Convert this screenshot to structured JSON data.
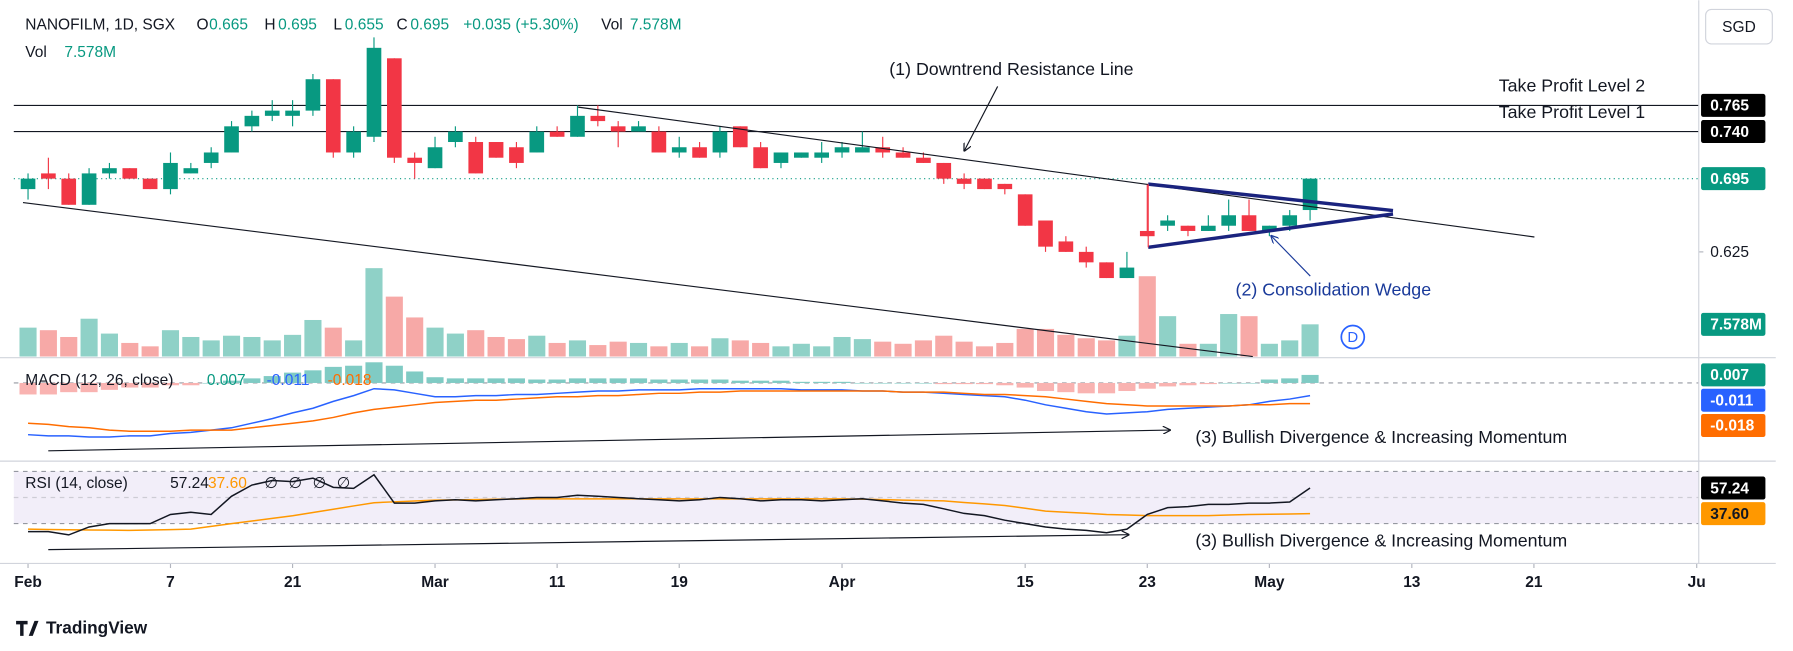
{
  "header": {
    "symbol": "NANOFILM, 1D, SGX",
    "fields": [
      "O",
      "H",
      "L",
      "C"
    ],
    "change": "+0.035 (+5.30%)",
    "vol_title": "Vol",
    "currency": "SGD",
    "events_marker": "D",
    "brand": "TradingView"
  },
  "chart_data": [
    {
      "type": "candlestick",
      "x": [
        0,
        1,
        2,
        3,
        4,
        5,
        6,
        7,
        8,
        9,
        10,
        11,
        12,
        13,
        14,
        15,
        16,
        17,
        18,
        19,
        20,
        21,
        22,
        23,
        24,
        25,
        26,
        27,
        28,
        29,
        30,
        31,
        32,
        33,
        34,
        35,
        36,
        37,
        38,
        39,
        40,
        41,
        42,
        43,
        44,
        45,
        46,
        47,
        48,
        49,
        50,
        51,
        52,
        53,
        54,
        55,
        56,
        57,
        58,
        59,
        60,
        61,
        62,
        63
      ],
      "open": [
        0.685,
        0.7,
        0.695,
        0.67,
        0.7,
        0.705,
        0.695,
        0.685,
        0.7,
        0.71,
        0.72,
        0.745,
        0.755,
        0.755,
        0.76,
        0.79,
        0.72,
        0.735,
        0.81,
        0.715,
        0.705,
        0.73,
        0.73,
        0.73,
        0.725,
        0.72,
        0.74,
        0.735,
        0.755,
        0.745,
        0.74,
        0.74,
        0.72,
        0.725,
        0.72,
        0.745,
        0.725,
        0.71,
        0.715,
        0.715,
        0.72,
        0.72,
        0.725,
        0.72,
        0.715,
        0.71,
        0.695,
        0.695,
        0.69,
        0.68,
        0.655,
        0.635,
        0.625,
        0.615,
        0.6,
        0.645,
        0.65,
        0.65,
        0.645,
        0.65,
        0.66,
        0.645,
        0.65,
        0.665
      ],
      "high": [
        0.7,
        0.715,
        0.7,
        0.705,
        0.71,
        0.705,
        0.695,
        0.72,
        0.71,
        0.725,
        0.75,
        0.76,
        0.77,
        0.77,
        0.795,
        0.79,
        0.745,
        0.83,
        0.81,
        0.72,
        0.735,
        0.745,
        0.735,
        0.73,
        0.73,
        0.745,
        0.745,
        0.765,
        0.765,
        0.75,
        0.75,
        0.745,
        0.735,
        0.73,
        0.745,
        0.745,
        0.73,
        0.72,
        0.72,
        0.73,
        0.73,
        0.74,
        0.735,
        0.725,
        0.72,
        0.71,
        0.7,
        0.695,
        0.69,
        0.68,
        0.655,
        0.64,
        0.63,
        0.615,
        0.625,
        0.69,
        0.66,
        0.65,
        0.66,
        0.675,
        0.675,
        0.65,
        0.665,
        0.695
      ],
      "low": [
        0.675,
        0.685,
        0.67,
        0.67,
        0.695,
        0.695,
        0.685,
        0.68,
        0.7,
        0.705,
        0.72,
        0.74,
        0.75,
        0.745,
        0.755,
        0.715,
        0.715,
        0.73,
        0.71,
        0.695,
        0.705,
        0.725,
        0.7,
        0.715,
        0.705,
        0.72,
        0.735,
        0.735,
        0.745,
        0.725,
        0.74,
        0.72,
        0.715,
        0.715,
        0.715,
        0.725,
        0.705,
        0.705,
        0.715,
        0.71,
        0.715,
        0.72,
        0.715,
        0.715,
        0.71,
        0.69,
        0.685,
        0.685,
        0.68,
        0.65,
        0.625,
        0.625,
        0.61,
        0.6,
        0.6,
        0.64,
        0.645,
        0.64,
        0.645,
        0.645,
        0.645,
        0.64,
        0.645,
        0.655
      ],
      "close": [
        0.695,
        0.695,
        0.67,
        0.7,
        0.705,
        0.695,
        0.685,
        0.71,
        0.705,
        0.72,
        0.745,
        0.755,
        0.76,
        0.76,
        0.79,
        0.72,
        0.74,
        0.82,
        0.715,
        0.71,
        0.725,
        0.74,
        0.7,
        0.715,
        0.71,
        0.74,
        0.735,
        0.755,
        0.75,
        0.74,
        0.745,
        0.72,
        0.725,
        0.715,
        0.74,
        0.725,
        0.705,
        0.72,
        0.72,
        0.72,
        0.725,
        0.725,
        0.72,
        0.715,
        0.71,
        0.695,
        0.69,
        0.685,
        0.685,
        0.65,
        0.63,
        0.625,
        0.615,
        0.6,
        0.61,
        0.64,
        0.655,
        0.645,
        0.65,
        0.66,
        0.645,
        0.65,
        0.66,
        0.695
      ],
      "up_color": "#089981",
      "down_color": "#f23645",
      "xlim": [
        -0.7,
        82.1
      ],
      "xticks": [
        {
          "value": 0,
          "label": "Feb"
        },
        7,
        {
          "value": 13,
          "label": "21"
        },
        {
          "value": 20,
          "label": "Mar"
        },
        {
          "value": 26,
          "label": "11"
        },
        {
          "value": 32,
          "label": "19"
        },
        {
          "value": 40,
          "label": "Apr"
        },
        {
          "value": 49,
          "label": "15"
        },
        {
          "value": 55,
          "label": "23"
        },
        {
          "value": 61,
          "label": "May"
        },
        {
          "value": 68,
          "label": "13"
        },
        {
          "value": 74,
          "label": "21"
        },
        {
          "value": 82,
          "label": "Ju"
        }
      ],
      "ylim": [
        0.525,
        0.86
      ],
      "yticks": [
        0.625
      ],
      "price_lines": [
        {
          "name": "Take Profit Level 2",
          "value": 0.765
        },
        {
          "name": "Take Profit Level 1",
          "value": 0.74,
          "label": "0.740"
        }
      ],
      "annotations": [
        "(1) Downtrend Resistance Line",
        "(2) Consolidation Wedge"
      ]
    },
    {
      "type": "volume",
      "values": [
        6.8,
        6.2,
        4.6,
        8.9,
        5.4,
        3.2,
        2.4,
        6.2,
        4.6,
        3.8,
        4.9,
        4.6,
        3.8,
        5.1,
        8.6,
        6.8,
        3.8,
        20.8,
        14.1,
        9.2,
        6.8,
        5.4,
        6.2,
        4.6,
        4.1,
        4.9,
        3.2,
        3.8,
        2.7,
        3.5,
        3.2,
        2.4,
        3.2,
        2.4,
        4.3,
        3.8,
        3.2,
        2.4,
        3.0,
        2.4,
        4.6,
        4.1,
        3.5,
        3.0,
        3.8,
        4.9,
        3.5,
        2.4,
        3.2,
        6.5,
        6.5,
        5.1,
        4.3,
        3.8,
        4.9,
        18.9,
        9.5,
        3.0,
        3.0,
        10.0,
        9.5,
        3.0,
        3.8,
        7.578
      ],
      "last_label": "7.578M",
      "ylim": [
        0,
        82.5
      ],
      "up_color": "#8fd1c7",
      "down_color": "#f7a9a7"
    },
    {
      "type": "macd",
      "title": "MACD (12, 26, close)",
      "histogram": [
        -0.01,
        -0.01,
        -0.008,
        -0.008,
        -0.006,
        -0.004,
        -0.004,
        -0.002,
        -0.002,
        0,
        0.002,
        0.004,
        0.006,
        0.009,
        0.011,
        0.014,
        0.015,
        0.018,
        0.015,
        0.01,
        0.005,
        0.004,
        0.004,
        0.004,
        0.004,
        0.003,
        0.003,
        0.004,
        0.004,
        0.004,
        0.004,
        0.003,
        0.003,
        0.003,
        0.003,
        0.002,
        0.002,
        0.002,
        0.001,
        0.001,
        0.001,
        0,
        0,
        0,
        0,
        -0.001,
        -0.001,
        -0.001,
        -0.002,
        -0.004,
        -0.007,
        -0.008,
        -0.009,
        -0.009,
        -0.007,
        -0.005,
        -0.003,
        -0.002,
        -0.001,
        0,
        0,
        0.003,
        0.004,
        0.007
      ],
      "macd": [
        -0.045,
        -0.046,
        -0.046,
        -0.047,
        -0.047,
        -0.046,
        -0.046,
        -0.044,
        -0.043,
        -0.041,
        -0.039,
        -0.035,
        -0.031,
        -0.026,
        -0.022,
        -0.016,
        -0.011,
        -0.005,
        -0.006,
        -0.009,
        -0.012,
        -0.012,
        -0.011,
        -0.011,
        -0.01,
        -0.01,
        -0.009,
        -0.008,
        -0.007,
        -0.007,
        -0.006,
        -0.006,
        -0.006,
        -0.005,
        -0.005,
        -0.005,
        -0.005,
        -0.005,
        -0.006,
        -0.006,
        -0.006,
        -0.007,
        -0.007,
        -0.008,
        -0.008,
        -0.009,
        -0.01,
        -0.011,
        -0.012,
        -0.015,
        -0.019,
        -0.022,
        -0.025,
        -0.027,
        -0.026,
        -0.025,
        -0.023,
        -0.022,
        -0.021,
        -0.02,
        -0.019,
        -0.016,
        -0.014,
        -0.011
      ],
      "signal": [
        -0.035,
        -0.036,
        -0.038,
        -0.039,
        -0.041,
        -0.042,
        -0.042,
        -0.042,
        -0.041,
        -0.041,
        -0.041,
        -0.039,
        -0.037,
        -0.035,
        -0.033,
        -0.03,
        -0.026,
        -0.023,
        -0.021,
        -0.019,
        -0.017,
        -0.016,
        -0.015,
        -0.015,
        -0.014,
        -0.013,
        -0.012,
        -0.012,
        -0.011,
        -0.011,
        -0.01,
        -0.009,
        -0.009,
        -0.008,
        -0.008,
        -0.007,
        -0.007,
        -0.007,
        -0.007,
        -0.007,
        -0.007,
        -0.007,
        -0.007,
        -0.008,
        -0.008,
        -0.008,
        -0.009,
        -0.01,
        -0.01,
        -0.011,
        -0.012,
        -0.014,
        -0.016,
        -0.018,
        -0.019,
        -0.02,
        -0.02,
        -0.02,
        -0.02,
        -0.02,
        -0.019,
        -0.019,
        -0.018,
        -0.018
      ],
      "hist_up_color": "#80cbc4",
      "hist_down_color": "#f9b3b1",
      "histogram_color": "#089981",
      "macd_color": "#2962ff",
      "signal_color": "#ff6d00",
      "ylim": [
        -0.067,
        0.021
      ],
      "yticks": [
        0
      ],
      "annotation": "(3) Bullish Divergence & Increasing Momentum"
    },
    {
      "type": "rsi",
      "title": "RSI (14, close)",
      "values": [
        23.9,
        23.9,
        21.3,
        27.4,
        30,
        30,
        30,
        37,
        38.7,
        37,
        50.9,
        59.6,
        63,
        62.2,
        64.8,
        57.8,
        57,
        67.4,
        45.7,
        45.7,
        47.4,
        48.3,
        47.4,
        48.3,
        49.1,
        50,
        50,
        51.7,
        50.9,
        50,
        49.1,
        48.3,
        47.4,
        48.3,
        50,
        49.1,
        47.4,
        48.3,
        48.3,
        47.4,
        48.3,
        49.1,
        47.4,
        45.7,
        44.8,
        41.3,
        37.8,
        36.1,
        32.6,
        30,
        27.4,
        25.7,
        24.8,
        23,
        25.7,
        37,
        42.2,
        43,
        44.8,
        44.8,
        45.7,
        45.7,
        46.5,
        57.24
      ],
      "ma": [
        25.7,
        25.5,
        25.3,
        25.1,
        25,
        24.8,
        25.1,
        25.4,
        25.7,
        27.8,
        30,
        32,
        34,
        36,
        38.5,
        41,
        43.5,
        46,
        46.7,
        47.3,
        48,
        48.2,
        48.4,
        48.6,
        48.8,
        49,
        49,
        49,
        49,
        49,
        49,
        49,
        49,
        49,
        49,
        49,
        49,
        49,
        49,
        49,
        49,
        48.7,
        48.4,
        48,
        47.7,
        47.4,
        46.2,
        45.1,
        43.9,
        41.8,
        39.6,
        38.7,
        37.9,
        37,
        36.6,
        36.1,
        36.1,
        36.1,
        36.1,
        36.6,
        37,
        37.2,
        37.4,
        37.6
      ],
      "ma_last_label": "37.60",
      "na_marks": [
        "∅",
        "∅",
        "∅",
        "∅"
      ],
      "color": "#131722",
      "ma_color": "#ff9800",
      "band_color": "#7e57c2",
      "ylim": [
        3,
        77
      ],
      "yticks": [
        30,
        50,
        70
      ],
      "annotation": "(3) Bullish Divergence & Increasing Momentum"
    }
  ]
}
